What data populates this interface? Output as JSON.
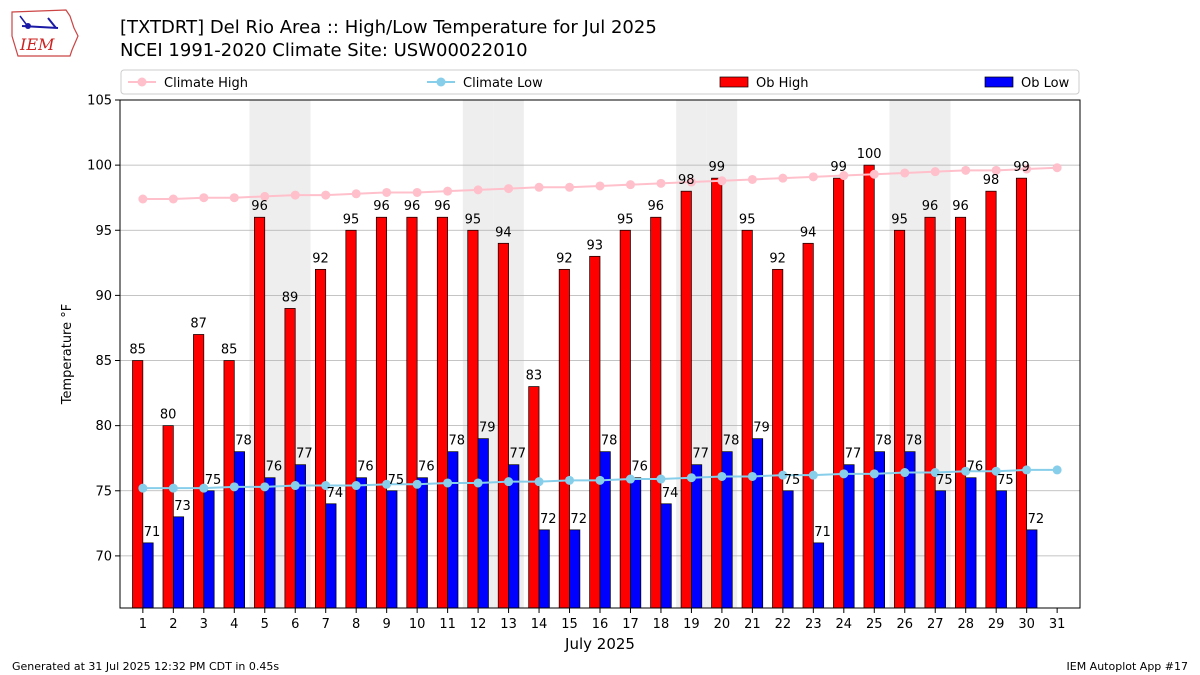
{
  "header": {
    "title_line1": "[TXTDRT] Del Rio Area :: High/Low Temperature for Jul 2025",
    "title_line2": "NCEI 1991-2020 Climate Site: USW00022010"
  },
  "logo": {
    "text": "IEM",
    "icon": "iowa-state-outline-logo"
  },
  "footer": {
    "left": "Generated at 31 Jul 2025 12:32 PM CDT in 0.45s",
    "right": "IEM Autoplot App #17"
  },
  "colors": {
    "ob_high": "#ff0000",
    "ob_low": "#0000ff",
    "climate_high": "#ffc0cb",
    "climate_low": "#87ceeb",
    "weekend_shade": "#eeeeee",
    "grid": "#b0b0b0"
  },
  "chart_data": {
    "type": "bar",
    "title": "[TXTDRT] Del Rio Area :: High/Low Temperature for Jul 2025",
    "subtitle": "NCEI 1991-2020 Climate Site: USW00022010",
    "xlabel": "July 2025",
    "ylabel": "Temperature °F",
    "ylim": [
      66,
      105
    ],
    "yticks": [
      70,
      75,
      80,
      85,
      90,
      95,
      100,
      105
    ],
    "grid": "horizontal",
    "legend_position": "top",
    "categories": [
      "1",
      "2",
      "3",
      "4",
      "5",
      "6",
      "7",
      "8",
      "9",
      "10",
      "11",
      "12",
      "13",
      "14",
      "15",
      "16",
      "17",
      "18",
      "19",
      "20",
      "21",
      "22",
      "23",
      "24",
      "25",
      "26",
      "27",
      "28",
      "29",
      "30",
      "31"
    ],
    "shaded_days": [
      5,
      6,
      12,
      13,
      19,
      20,
      26,
      27
    ],
    "series": [
      {
        "name": "Climate High",
        "kind": "line",
        "values": [
          97.4,
          97.4,
          97.5,
          97.5,
          97.6,
          97.7,
          97.7,
          97.8,
          97.9,
          97.9,
          98.0,
          98.1,
          98.2,
          98.3,
          98.3,
          98.4,
          98.5,
          98.6,
          98.7,
          98.8,
          98.9,
          99.0,
          99.1,
          99.2,
          99.3,
          99.4,
          99.5,
          99.6,
          99.6,
          99.7,
          99.8
        ]
      },
      {
        "name": "Climate Low",
        "kind": "line",
        "values": [
          75.2,
          75.2,
          75.2,
          75.3,
          75.3,
          75.4,
          75.4,
          75.4,
          75.5,
          75.5,
          75.6,
          75.6,
          75.7,
          75.7,
          75.8,
          75.8,
          75.9,
          75.9,
          76.0,
          76.1,
          76.1,
          76.2,
          76.2,
          76.3,
          76.3,
          76.4,
          76.4,
          76.5,
          76.5,
          76.6,
          76.6
        ]
      },
      {
        "name": "Ob High",
        "kind": "bar",
        "values": [
          85,
          80,
          87,
          85,
          96,
          89,
          92,
          95,
          96,
          96,
          96,
          95,
          94,
          83,
          92,
          93,
          95,
          96,
          98,
          99,
          95,
          92,
          94,
          99,
          100,
          95,
          96,
          96,
          98,
          99,
          null
        ]
      },
      {
        "name": "Ob Low",
        "kind": "bar",
        "values": [
          71,
          73,
          75,
          78,
          76,
          77,
          74,
          76,
          75,
          76,
          78,
          79,
          77,
          72,
          72,
          78,
          76,
          74,
          77,
          78,
          79,
          75,
          71,
          77,
          78,
          78,
          75,
          76,
          75,
          72,
          null
        ]
      }
    ]
  }
}
